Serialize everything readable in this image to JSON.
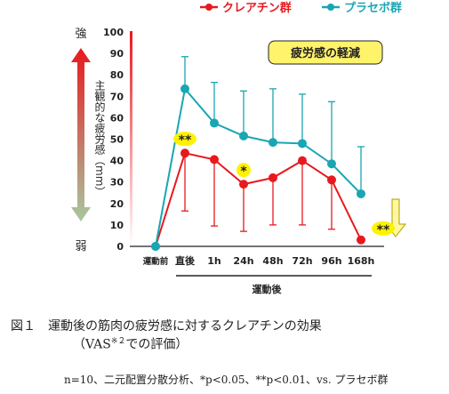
{
  "chart_data": {
    "type": "line",
    "categories": [
      "運動前",
      "直後",
      "1h",
      "24h",
      "48h",
      "72h",
      "96h",
      "168h"
    ],
    "x_group_label": "運動後",
    "ylim": [
      0,
      100
    ],
    "yticks": [
      0,
      10,
      20,
      30,
      40,
      50,
      60,
      70,
      80,
      90,
      100
    ],
    "y_axis": {
      "top_label": "強",
      "bottom_label": "弱",
      "label": "主観的な疲労感（mm）"
    },
    "series": [
      {
        "name": "クレアチン群",
        "color": "#e8191e",
        "values": [
          0,
          43.5,
          40.5,
          29,
          32,
          40,
          31,
          3
        ],
        "error_low": [
          0,
          27,
          31,
          22,
          22,
          30,
          23,
          0
        ],
        "error_high": [
          0,
          0,
          0,
          0,
          0,
          0,
          0,
          0
        ]
      },
      {
        "name": "プラセボ群",
        "color": "#19a6b3",
        "values": [
          0,
          73.5,
          57.5,
          51.5,
          48.5,
          48,
          38.5,
          24.5
        ],
        "error_low": [
          0,
          0,
          0,
          0,
          0,
          0,
          0,
          0
        ],
        "error_high": [
          0,
          15,
          19,
          21,
          25,
          23,
          29,
          22
        ]
      }
    ],
    "significance": [
      {
        "category": "直後",
        "label": "**"
      },
      {
        "category": "24h",
        "label": "*"
      },
      {
        "category": "168h",
        "label": "**"
      }
    ],
    "annotation": "疲労感の軽減"
  },
  "caption": {
    "main": "図１　運動後の筋肉の疲労感に対するクレアチンの効果",
    "sub_prefix": "（VAS",
    "sub_sup": "※２",
    "sub_suffix": "での評価）",
    "note": "n=10、二元配置分散分析、*p<0.05、**p<0.01、vs. プラセボ群"
  },
  "colors": {
    "arrow_top": "#e8191e",
    "arrow_bottom": "#a8c8a0",
    "highlight": "#fff200",
    "annotation_box": "#fff36b",
    "down_arrow": "#fff8a0"
  }
}
